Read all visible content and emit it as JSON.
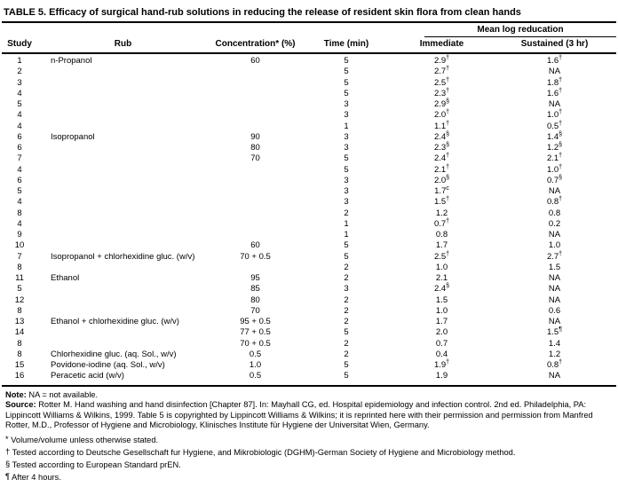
{
  "title": "TABLE 5. Efficacy of surgical hand-rub solutions in reducing the release of resident skin flora from clean hands",
  "table": {
    "spanner": "Mean log reducation",
    "columns": [
      "Study",
      "Rub",
      "Concentration* (%)",
      "Time (min)",
      "Immediate",
      "Sustained (3 hr)"
    ],
    "rows": [
      [
        "1",
        "n-Propanol",
        "60",
        "5",
        "2.9",
        "†",
        "1.6",
        "†"
      ],
      [
        "2",
        "",
        "",
        "5",
        "2.7",
        "†",
        "NA",
        ""
      ],
      [
        "3",
        "",
        "",
        "5",
        "2.5",
        "†",
        "1.8",
        "†"
      ],
      [
        "4",
        "",
        "",
        "5",
        "2.3",
        "†",
        "1.6",
        "†"
      ],
      [
        "5",
        "",
        "",
        "3",
        "2.9",
        "§",
        "NA",
        ""
      ],
      [
        "4",
        "",
        "",
        "3",
        "2.0",
        "†",
        "1.0",
        "†"
      ],
      [
        "4",
        "",
        "",
        "1",
        "1.1",
        "†",
        "0.5",
        "†"
      ],
      [
        "6",
        "Isopropanol",
        "90",
        "3",
        "2.4",
        "§",
        "1.4",
        "§"
      ],
      [
        "6",
        "",
        "80",
        "3",
        "2.3",
        "§",
        "1.2",
        "§"
      ],
      [
        "7",
        "",
        "70",
        "5",
        "2.4",
        "†",
        "2.1",
        "†"
      ],
      [
        "4",
        "",
        "",
        "5",
        "2.1",
        "†",
        "1.0",
        "†"
      ],
      [
        "6",
        "",
        "",
        "3",
        "2.0",
        "§",
        "0.7",
        "§"
      ],
      [
        "5",
        "",
        "",
        "3",
        "1.7",
        "c",
        "NA",
        ""
      ],
      [
        "4",
        "",
        "",
        "3",
        "1.5",
        "†",
        "0.8",
        "†"
      ],
      [
        "8",
        "",
        "",
        "2",
        "1.2",
        "",
        "0.8",
        ""
      ],
      [
        "4",
        "",
        "",
        "1",
        "0.7",
        "†",
        "0.2",
        ""
      ],
      [
        "9",
        "",
        "",
        "1",
        "0.8",
        "",
        "NA",
        ""
      ],
      [
        "10",
        "",
        "60",
        "5",
        "1.7",
        "",
        "1.0",
        ""
      ],
      [
        "7",
        "Isopropanol + chlorhexidine gluc. (w/v)",
        "70 + 0.5",
        "5",
        "2.5",
        "†",
        "2.7",
        "†"
      ],
      [
        "8",
        "",
        "",
        "2",
        "1.0",
        "",
        "1.5",
        ""
      ],
      [
        "11",
        "Ethanol",
        "95",
        "2",
        "2.1",
        "",
        "NA",
        ""
      ],
      [
        "5",
        "",
        "85",
        "3",
        "2.4",
        "§",
        "NA",
        ""
      ],
      [
        "12",
        "",
        "80",
        "2",
        "1.5",
        "",
        "NA",
        ""
      ],
      [
        "8",
        "",
        "70",
        "2",
        "1.0",
        "",
        "0.6",
        ""
      ],
      [
        "13",
        "Ethanol + chlorhexidine gluc. (w/v)",
        "95 + 0.5",
        "2",
        "1.7",
        "",
        "NA",
        ""
      ],
      [
        "14",
        "",
        "77 + 0.5",
        "5",
        "2.0",
        "",
        "1.5",
        "¶"
      ],
      [
        "8",
        "",
        "70 + 0.5",
        "2",
        "0.7",
        "",
        "1.4",
        ""
      ],
      [
        "8",
        "Chlorhexidine gluc. (aq. Sol., w/v)",
        "0.5",
        "2",
        "0.4",
        "",
        "1.2",
        ""
      ],
      [
        "15",
        "Povidone-iodine (aq. Sol., w/v)",
        "1.0",
        "5",
        "1.9",
        "†",
        "0.8",
        "†"
      ],
      [
        "16",
        "Peracetic acid (w/v)",
        "0.5",
        "5",
        "1.9",
        "",
        "NA",
        ""
      ]
    ]
  },
  "footer": {
    "note_label": "Note:",
    "note_text": " NA = not available.",
    "source_label": "Source:",
    "source_text": " Rotter M. Hand washing and hand disinfection [Chapter 87]. In: Mayhall CG, ed. Hospital epidemiology and infection control. 2nd ed. Philadelphia, PA: Lippincott Williams & Wilkins, 1999. Table 5 is copyrighted by Lippincott Williams & Wilkins; it is reprinted here with their permission and permission from Manfred Rotter, M.D., Professor of Hygiene and Microbiology, Klinisches Institute für Hygiene der Universitat Wien, Germany.",
    "footnotes": [
      {
        "mark": "*",
        "text": "Volume/volume unless otherwise stated."
      },
      {
        "mark": "†",
        "text": "Tested according to Deutsche Gesellschaft fur Hygiene, and Mikrobiologic (DGHM)-German Society of Hygiene and Microbiology method."
      },
      {
        "mark": "§",
        "text": "Tested according to European Standard prEN."
      },
      {
        "mark": "¶",
        "text": "After 4 hours."
      }
    ]
  }
}
